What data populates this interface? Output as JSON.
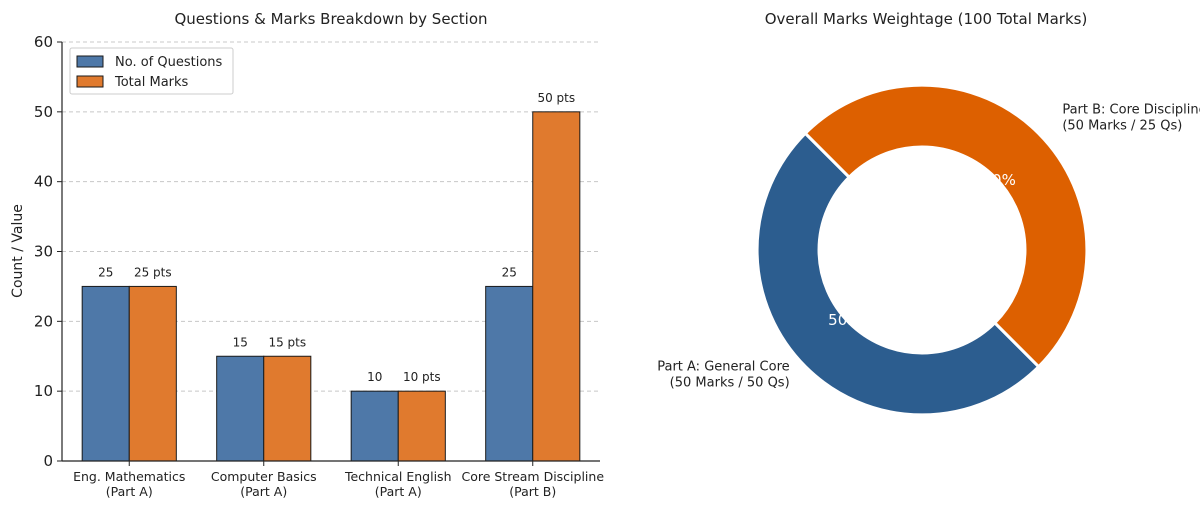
{
  "chart_data": [
    {
      "type": "bar",
      "title": "Questions & Marks Breakdown by Section",
      "xlabel": "",
      "ylabel": "Count / Value",
      "ylim": [
        0,
        60
      ],
      "yticks": [
        "0",
        "10",
        "20",
        "30",
        "40",
        "50",
        "60"
      ],
      "grid": true,
      "legend_position": "top-left",
      "categories": [
        [
          "Eng. Mathematics",
          "(Part A)"
        ],
        [
          "Computer Basics",
          "(Part A)"
        ],
        [
          "Technical English",
          "(Part A)"
        ],
        [
          "Core Stream Discipline",
          "(Part B)"
        ]
      ],
      "series": [
        {
          "name": "No. of Questions",
          "color": "#4e78a8",
          "values": [
            25,
            15,
            10,
            25
          ],
          "labels": [
            "25",
            "15",
            "10",
            "25"
          ]
        },
        {
          "name": "Total Marks",
          "color": "#e07a2e",
          "values": [
            25,
            15,
            10,
            50
          ],
          "labels": [
            "25 pts",
            "15 pts",
            "10 pts",
            "50 pts"
          ]
        }
      ]
    },
    {
      "type": "pie",
      "title": "Overall Marks Weightage (100 Total Marks)",
      "slices": [
        {
          "label": [
            "Part A: General Core",
            "(50 Marks / 50 Qs)"
          ],
          "value": 50,
          "pct_label": "50.0%",
          "color": "#2c5d8f"
        },
        {
          "label": [
            "Part B: Core Discipline",
            "(50 Marks / 25 Qs)"
          ],
          "value": 50,
          "pct_label": "50.0%",
          "color": "#dd6000"
        }
      ]
    }
  ]
}
